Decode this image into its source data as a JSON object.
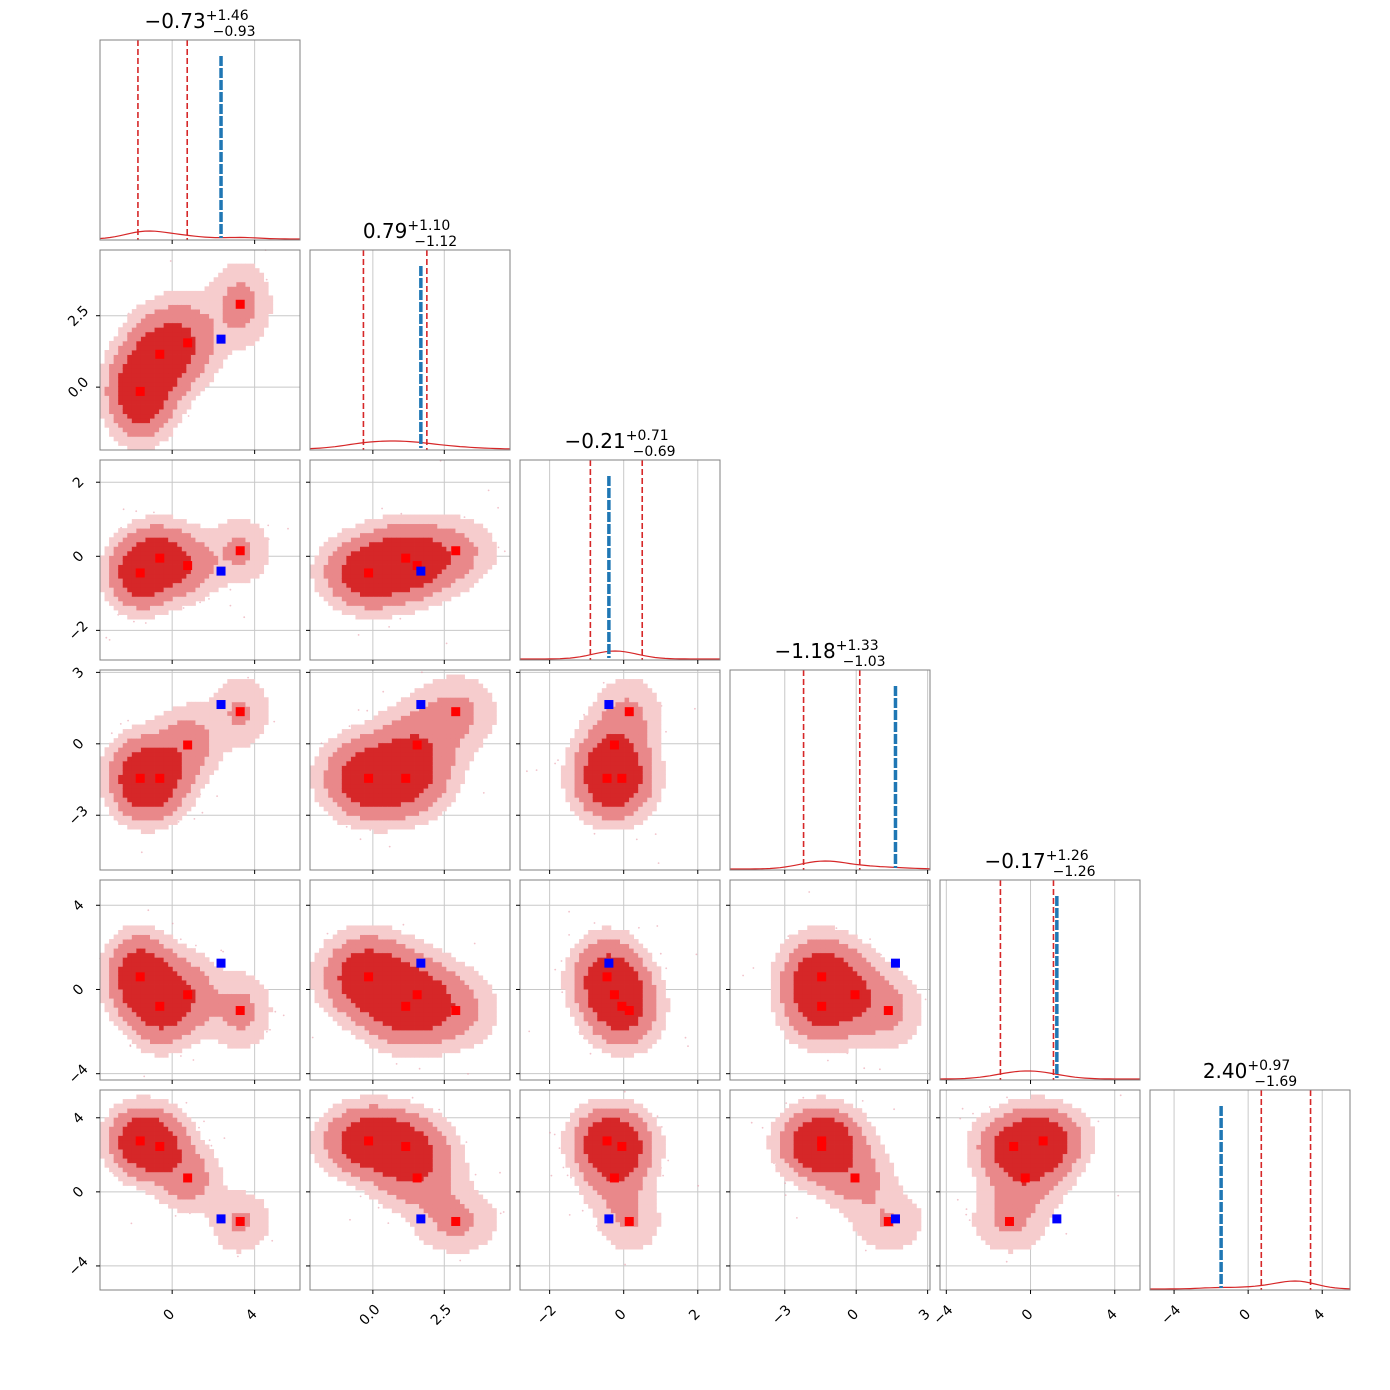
{
  "chart_data": {
    "type": "scatter",
    "subtype": "corner-plot",
    "parameters": 6,
    "grid": true,
    "colors": {
      "posterior": "#d62728",
      "posterior_fill": [
        "#f6cccd",
        "#e9888a",
        "#d62728"
      ],
      "truth_line": "#1f77b4",
      "truth_marker": "#0000ff",
      "mode_marker": "#ff0000",
      "grid": "#c8c8c8",
      "frame": "#808080"
    },
    "ranges": [
      [
        -3.5,
        6.2
      ],
      [
        -2.2,
        4.8
      ],
      [
        -2.8,
        2.6
      ],
      [
        -5.3,
        3.1
      ],
      [
        -4.3,
        5.2
      ],
      [
        -5.3,
        5.5
      ]
    ],
    "titles": [
      {
        "median": "−0.73",
        "plus": "+1.46",
        "minus": "−0.93"
      },
      {
        "median": "0.79",
        "plus": "+1.10",
        "minus": "−1.12"
      },
      {
        "median": "−0.21",
        "plus": "+0.71",
        "minus": "−0.69"
      },
      {
        "median": "−1.18",
        "plus": "+1.33",
        "minus": "−1.03"
      },
      {
        "median": "−0.17",
        "plus": "+1.26",
        "minus": "−1.26"
      },
      {
        "median": "2.40",
        "plus": "+0.97",
        "minus": "−1.69"
      }
    ],
    "ticks": [
      {
        "values": [
          0,
          4
        ],
        "labels": [
          "0",
          "4"
        ]
      },
      {
        "values": [
          0,
          2.5
        ],
        "labels": [
          "0.0",
          "2.5"
        ]
      },
      {
        "values": [
          -2,
          0,
          2
        ],
        "labels": [
          "−2",
          "0",
          "2"
        ]
      },
      {
        "values": [
          -3,
          0,
          3
        ],
        "labels": [
          "−3",
          "0",
          "3"
        ]
      },
      {
        "values": [
          -4,
          0,
          4
        ],
        "labels": [
          "−4",
          "0",
          "4"
        ]
      },
      {
        "values": [
          -4,
          0,
          4
        ],
        "labels": [
          "−4",
          "0",
          "4"
        ]
      }
    ],
    "quantile_lines": [
      [
        -1.66,
        0.73
      ],
      [
        -0.33,
        1.89
      ],
      [
        -0.9,
        0.5
      ],
      [
        -2.21,
        0.15
      ],
      [
        -1.43,
        1.09
      ],
      [
        0.71,
        3.37
      ]
    ],
    "truth_values": [
      2.37,
      1.68,
      -0.4,
      1.65,
      1.25,
      -1.46
    ],
    "modes": [
      [
        -1.55,
        -0.15,
        -0.45,
        -1.45,
        0.6,
        2.75
      ],
      [
        -0.6,
        1.15,
        -0.05,
        -1.45,
        -0.8,
        2.45
      ],
      [
        0.75,
        1.55,
        -0.25,
        -0.05,
        -0.25,
        0.75
      ],
      [
        3.3,
        2.9,
        0.15,
        1.35,
        -1.0,
        -1.6
      ]
    ],
    "mode_weights": [
      0.42,
      0.28,
      0.18,
      0.12
    ],
    "mode_widths": [
      0.9,
      0.9,
      0.55,
      0.95,
      1.1,
      1.05
    ]
  }
}
